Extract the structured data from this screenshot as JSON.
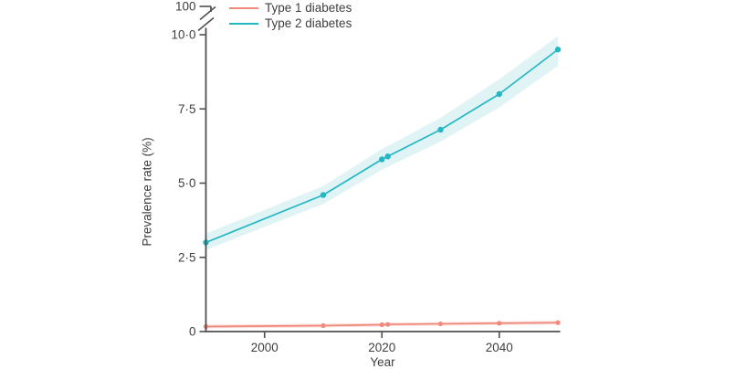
{
  "chart_data": {
    "type": "line",
    "title": "",
    "xlabel": "Year",
    "ylabel": "Prevalence rate (%)",
    "x": [
      1990,
      2010,
      2020,
      2021,
      2030,
      2040,
      2050
    ],
    "series": [
      {
        "name": "Type 1 diabetes",
        "color": "#f08a7d",
        "band_color": "#fbdeda",
        "values": [
          0.17,
          0.2,
          0.23,
          0.24,
          0.26,
          0.28,
          0.3
        ],
        "lower": [
          0.11,
          0.14,
          0.17,
          0.18,
          0.2,
          0.22,
          0.24
        ],
        "upper": [
          0.23,
          0.26,
          0.29,
          0.3,
          0.32,
          0.34,
          0.36
        ]
      },
      {
        "name": "Type 2 diabetes",
        "color": "#25b7c4",
        "band_color": "#e0f3f5",
        "values": [
          3.0,
          4.6,
          5.8,
          5.9,
          6.8,
          8.0,
          9.5
        ],
        "lower": [
          2.75,
          4.3,
          5.45,
          5.55,
          6.4,
          7.55,
          8.95
        ],
        "upper": [
          3.3,
          4.9,
          6.15,
          6.25,
          7.2,
          8.5,
          9.95
        ]
      }
    ],
    "x_ticks": [
      2000,
      2020,
      2040
    ],
    "y_ticks": [
      0,
      2.5,
      5,
      7.5,
      10
    ],
    "y_tick_labels": [
      "0",
      "2·5",
      "5·0",
      "7·5",
      "10·0"
    ],
    "y_axis_break_top_label": "100",
    "xlim": [
      1990,
      2050
    ],
    "ylim": [
      0,
      10
    ],
    "grid": false,
    "legend_position": "top-left",
    "confidence_bands": true,
    "axis_color": "#4f4f4f",
    "text_color": "#3f3f3f"
  }
}
